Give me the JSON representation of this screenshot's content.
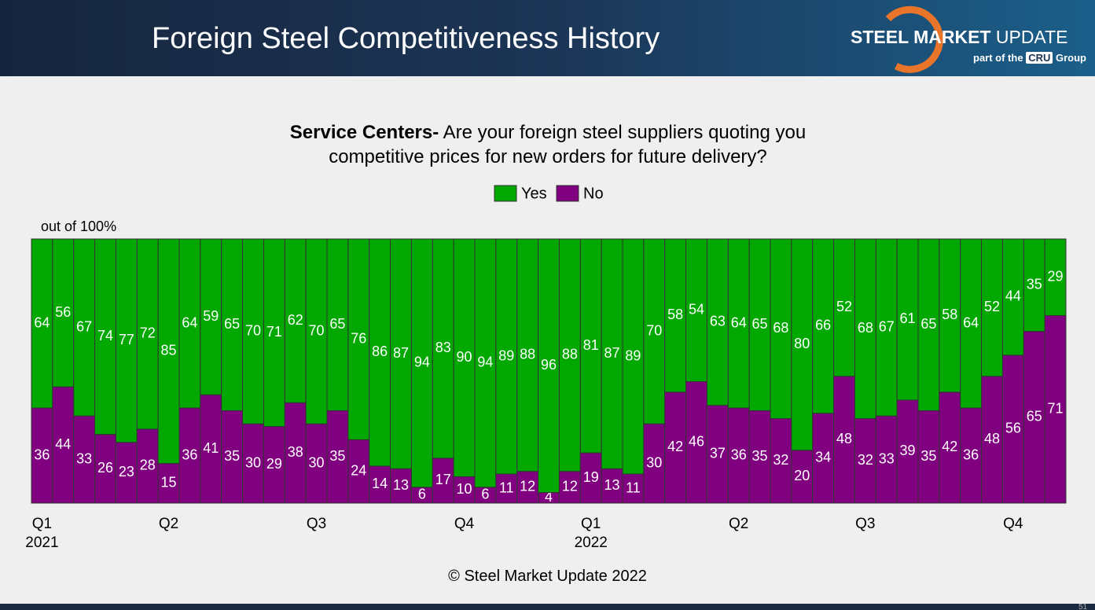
{
  "header": {
    "title": "Foreign Steel Competitiveness History"
  },
  "logo": {
    "name_bold": "STEEL MARKET",
    "name_rest": "UPDATE",
    "tagline_prefix": "part of the",
    "tagline_brand": "CRU",
    "tagline_suffix": "Group"
  },
  "chart_data": {
    "type": "stacked-bar",
    "title_prefix": "Service Centers-",
    "title": "Are your foreign steel suppliers quoting you competitive prices for new orders for future delivery?",
    "y_label": "out of 100%",
    "categories": [
      "Q1\n2021",
      null,
      null,
      null,
      null,
      null,
      "Q2",
      null,
      null,
      null,
      null,
      null,
      null,
      "Q3",
      null,
      null,
      null,
      null,
      null,
      null,
      "Q4",
      null,
      null,
      null,
      null,
      null,
      "Q1\n2022",
      null,
      null,
      null,
      null,
      null,
      null,
      "Q2",
      null,
      null,
      null,
      null,
      null,
      "Q3",
      null,
      null,
      null,
      null,
      null,
      null,
      "Q4",
      null,
      null
    ],
    "series": [
      {
        "name": "Yes",
        "color": "#00a800",
        "values": [
          64,
          56,
          67,
          74,
          77,
          72,
          85,
          64,
          59,
          65,
          70,
          71,
          62,
          70,
          65,
          76,
          86,
          87,
          94,
          83,
          90,
          94,
          89,
          88,
          96,
          88,
          81,
          87,
          89,
          70,
          58,
          54,
          63,
          64,
          65,
          68,
          80,
          66,
          52,
          68,
          67,
          61,
          65,
          58,
          64,
          52,
          44,
          35,
          29
        ]
      },
      {
        "name": "No",
        "color": "#800080",
        "values": [
          36,
          44,
          33,
          26,
          23,
          28,
          15,
          36,
          41,
          35,
          30,
          29,
          38,
          30,
          35,
          24,
          14,
          13,
          6,
          17,
          10,
          6,
          11,
          12,
          4,
          12,
          19,
          13,
          11,
          30,
          42,
          46,
          37,
          36,
          35,
          32,
          20,
          34,
          48,
          32,
          33,
          39,
          35,
          42,
          36,
          48,
          56,
          65,
          71
        ]
      }
    ],
    "ylim": [
      0,
      100
    ],
    "legend": "top"
  },
  "footer": {
    "copyright": "© Steel Market Update 2022",
    "page_number": "51"
  }
}
